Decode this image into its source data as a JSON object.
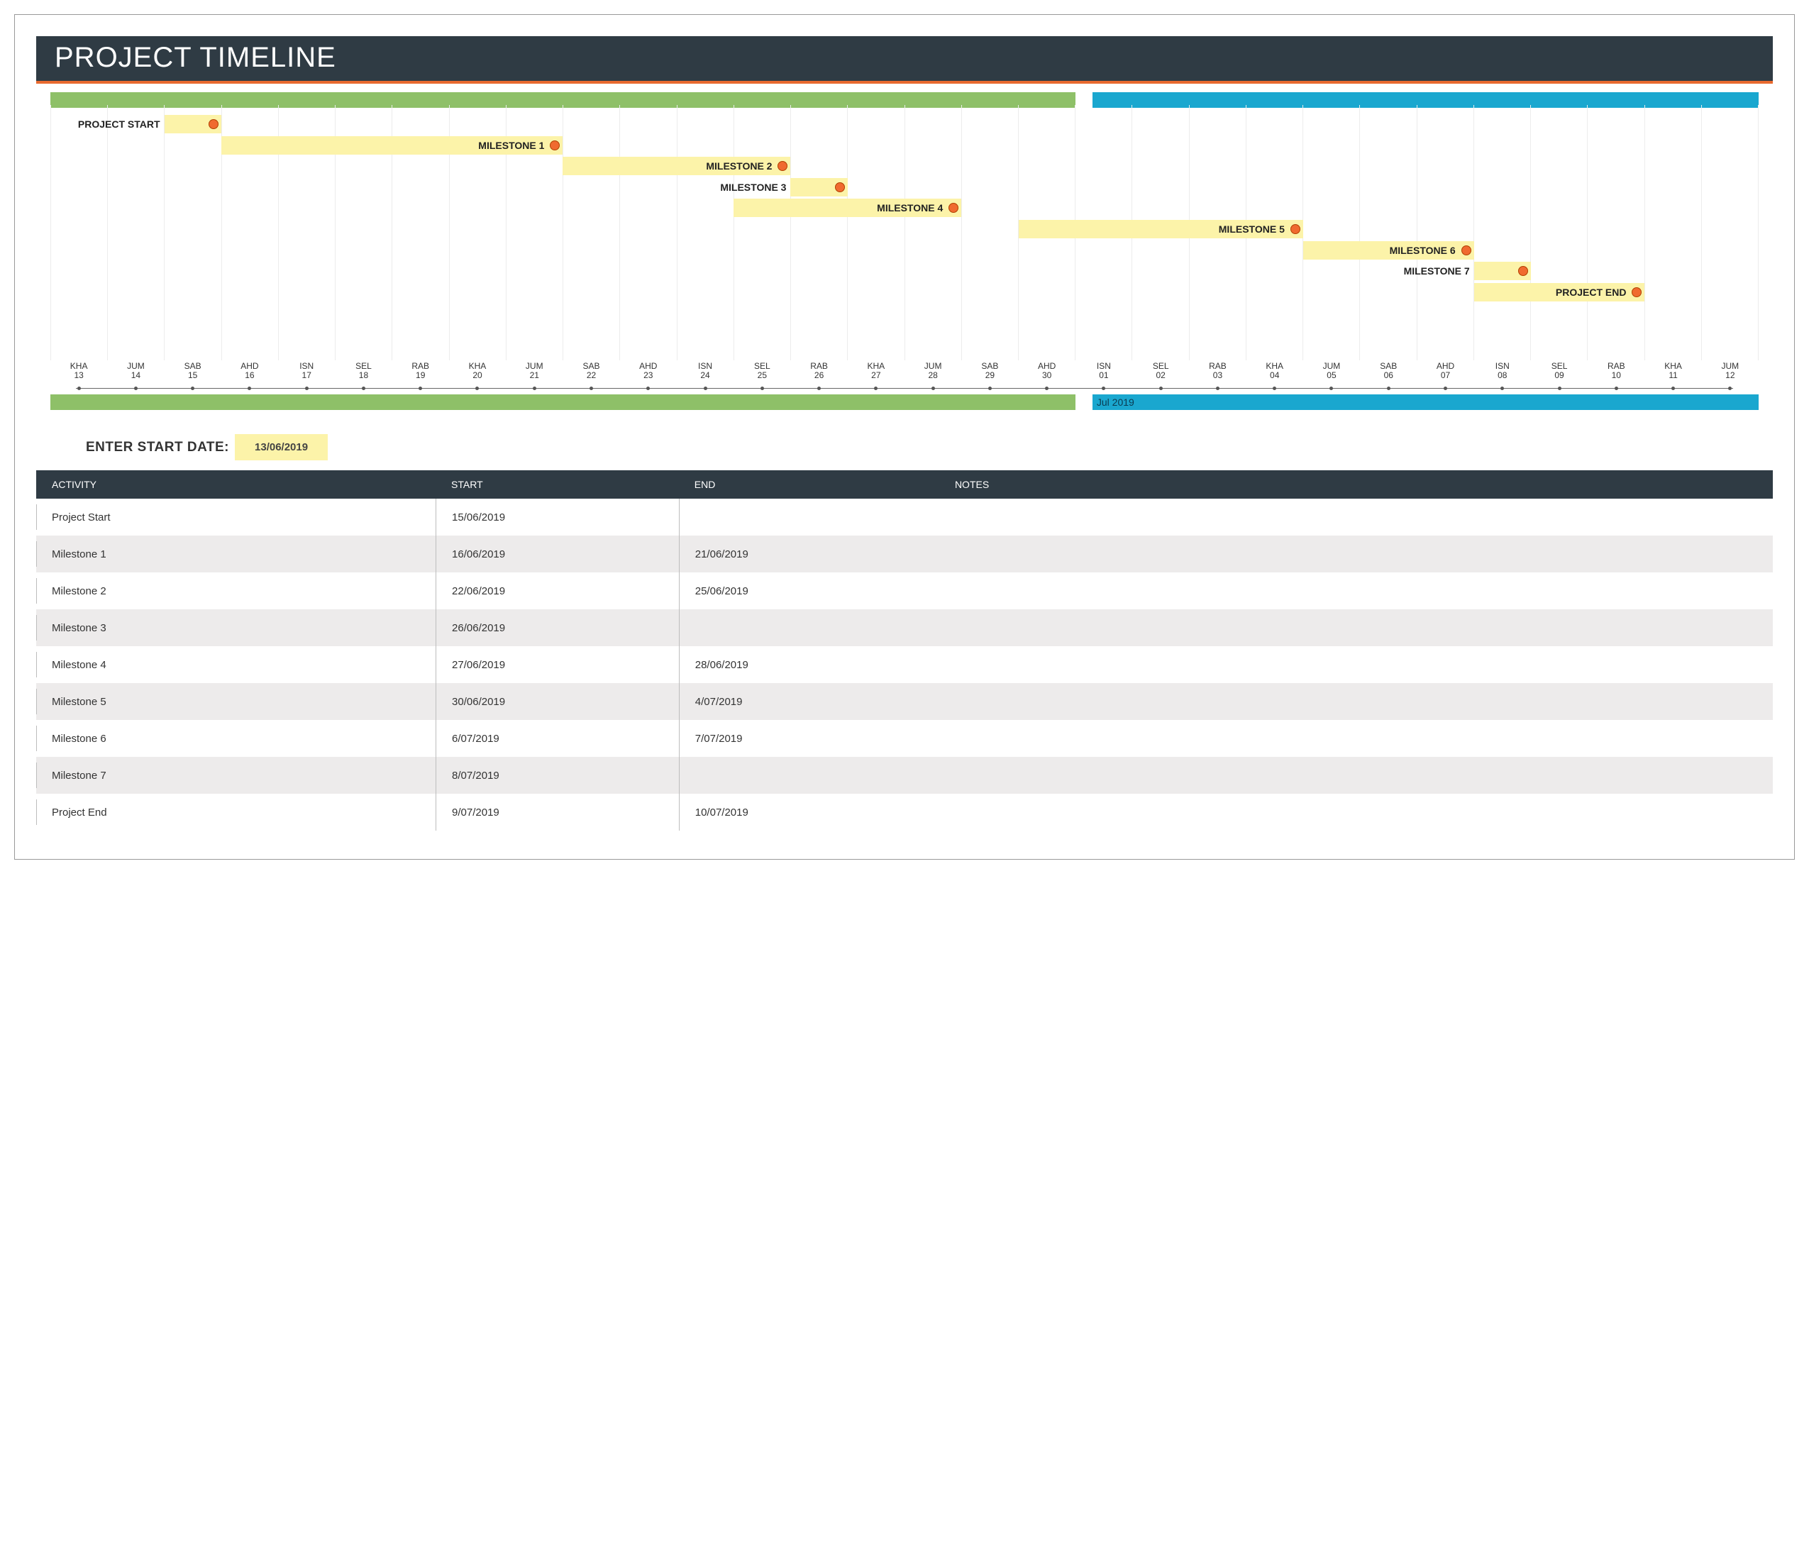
{
  "colors": {
    "header_bg": "#2f3b44",
    "accent": "#e86a2f",
    "green": "#8ec068",
    "blue": "#1aa7cf",
    "bar_fill": "#fcf3a9",
    "dot": "#f06a2f",
    "grid": "#ececec",
    "row_alt": "#edebeb"
  },
  "title": "PROJECT TIMELINE",
  "chart": {
    "type": "gantt-timeline",
    "n_days": 30,
    "split_day_index": 18,
    "top_bars": {
      "left_color": "#8ec068",
      "right_color": "#1aa7cf"
    },
    "bottom_bars": {
      "left_color": "#8ec068",
      "right_color": "#1aa7cf",
      "month_label": "Jul 2019"
    },
    "axis": {
      "days": [
        {
          "dow": "KHA",
          "dom": "13"
        },
        {
          "dow": "JUM",
          "dom": "14"
        },
        {
          "dow": "SAB",
          "dom": "15"
        },
        {
          "dow": "AHD",
          "dom": "16"
        },
        {
          "dow": "ISN",
          "dom": "17"
        },
        {
          "dow": "SEL",
          "dom": "18"
        },
        {
          "dow": "RAB",
          "dom": "19"
        },
        {
          "dow": "KHA",
          "dom": "20"
        },
        {
          "dow": "JUM",
          "dom": "21"
        },
        {
          "dow": "SAB",
          "dom": "22"
        },
        {
          "dow": "AHD",
          "dom": "23"
        },
        {
          "dow": "ISN",
          "dom": "24"
        },
        {
          "dow": "SEL",
          "dom": "25"
        },
        {
          "dow": "RAB",
          "dom": "26"
        },
        {
          "dow": "KHA",
          "dom": "27"
        },
        {
          "dow": "JUM",
          "dom": "28"
        },
        {
          "dow": "SAB",
          "dom": "29"
        },
        {
          "dow": "AHD",
          "dom": "30"
        },
        {
          "dow": "ISN",
          "dom": "01"
        },
        {
          "dow": "SEL",
          "dom": "02"
        },
        {
          "dow": "RAB",
          "dom": "03"
        },
        {
          "dow": "KHA",
          "dom": "04"
        },
        {
          "dow": "JUM",
          "dom": "05"
        },
        {
          "dow": "SAB",
          "dom": "06"
        },
        {
          "dow": "AHD",
          "dom": "07"
        },
        {
          "dow": "ISN",
          "dom": "08"
        },
        {
          "dow": "SEL",
          "dom": "09"
        },
        {
          "dow": "RAB",
          "dom": "10"
        },
        {
          "dow": "KHA",
          "dom": "11"
        },
        {
          "dow": "JUM",
          "dom": "12"
        }
      ]
    },
    "rows": [
      {
        "label": "PROJECT START",
        "start_idx": 2,
        "end_idx": 2,
        "row": 0,
        "label_outside": true,
        "fill_start_idx": 2
      },
      {
        "label": "MILESTONE 1",
        "start_idx": 3,
        "end_idx": 8,
        "row": 1,
        "fill_start_idx": 3
      },
      {
        "label": "MILESTONE 2",
        "start_idx": 9,
        "end_idx": 12,
        "row": 2,
        "fill_start_idx": 9
      },
      {
        "label": "MILESTONE 3",
        "start_idx": 13,
        "end_idx": 13,
        "row": 3,
        "label_outside": true,
        "fill_start_idx": 13
      },
      {
        "label": "MILESTONE 4",
        "start_idx": 14,
        "end_idx": 15,
        "row": 4,
        "fill_start_idx": 12
      },
      {
        "label": "MILESTONE 5",
        "start_idx": 17,
        "end_idx": 21,
        "row": 5,
        "fill_start_idx": 17
      },
      {
        "label": "MILESTONE 6",
        "start_idx": 23,
        "end_idx": 24,
        "row": 6,
        "fill_start_idx": 22
      },
      {
        "label": "MILESTONE 7",
        "start_idx": 25,
        "end_idx": 25,
        "row": 7,
        "label_outside": true,
        "fill_start_idx": 25
      },
      {
        "label": "PROJECT END",
        "start_idx": 26,
        "end_idx": 27,
        "row": 8,
        "fill_start_idx": 25
      }
    ],
    "row_height_pct": 8.2,
    "row_top_offset_pct": 4
  },
  "start_date": {
    "label": "ENTER START DATE:",
    "value": "13/06/2019"
  },
  "table": {
    "columns": [
      "ACTIVITY",
      "START",
      "END",
      "NOTES"
    ],
    "rows": [
      {
        "activity": "Project Start",
        "start": "15/06/2019",
        "end": "",
        "notes": ""
      },
      {
        "activity": "Milestone 1",
        "start": "16/06/2019",
        "end": "21/06/2019",
        "notes": ""
      },
      {
        "activity": "Milestone 2",
        "start": "22/06/2019",
        "end": "25/06/2019",
        "notes": ""
      },
      {
        "activity": "Milestone 3",
        "start": "26/06/2019",
        "end": "",
        "notes": ""
      },
      {
        "activity": "Milestone 4",
        "start": "27/06/2019",
        "end": "28/06/2019",
        "notes": ""
      },
      {
        "activity": "Milestone 5",
        "start": "30/06/2019",
        "end": "4/07/2019",
        "notes": ""
      },
      {
        "activity": "Milestone 6",
        "start": "6/07/2019",
        "end": "7/07/2019",
        "notes": ""
      },
      {
        "activity": "Milestone 7",
        "start": "8/07/2019",
        "end": "",
        "notes": ""
      },
      {
        "activity": "Project End",
        "start": "9/07/2019",
        "end": "10/07/2019",
        "notes": ""
      }
    ]
  }
}
